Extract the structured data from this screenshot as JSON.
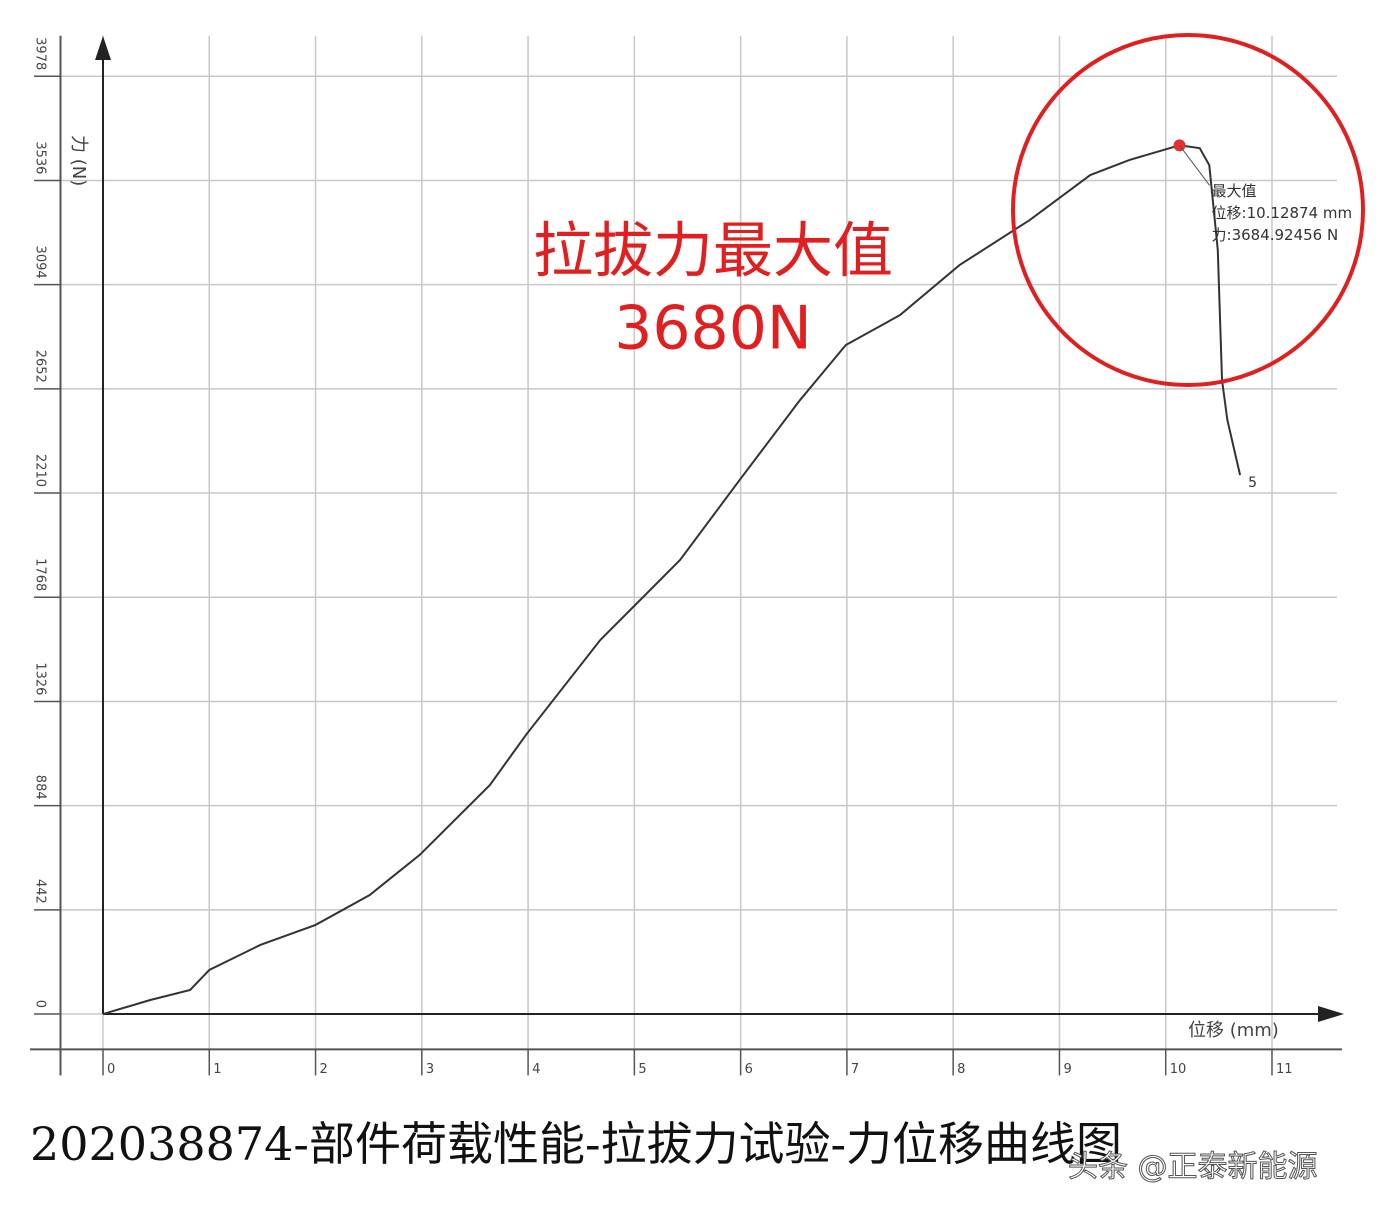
{
  "chart_data": {
    "type": "line",
    "y_label": "力 (N)",
    "x_label": "位移 (mm)",
    "annotation_title": "拉拔力最大值",
    "annotation_value": "3680N",
    "peak_label": [
      "最大值",
      "位移:10.12874 mm",
      "力:3684.92456 N"
    ],
    "end_label": "5",
    "caption": "202038874-部件荷载性能-拉拔力试验-力位移曲线图",
    "watermark": "头条 @正泰新能源",
    "xlim": [
      -0.4,
      11.8
    ],
    "ylim": [
      -150,
      4150
    ],
    "xticks": [
      0,
      1,
      2,
      3,
      4,
      5,
      6,
      7,
      8,
      9,
      10,
      11
    ],
    "yticks": [
      0,
      442,
      884,
      1326,
      1768,
      2210,
      2652,
      3094,
      3536,
      3978
    ],
    "grid": true,
    "series": [
      {
        "name": "力",
        "color": "#333333",
        "x": [
          0,
          0.44,
          0.82,
          1.0,
          1.48,
          2.0,
          2.51,
          2.98,
          3.64,
          3.98,
          4.68,
          5.43,
          5.99,
          6.56,
          6.99,
          7.5,
          8.06,
          8.72,
          9.29,
          9.66,
          10.13,
          10.32,
          10.41,
          10.49,
          10.53,
          10.58,
          10.7
        ],
        "values": [
          0,
          59,
          102,
          187,
          293,
          378,
          505,
          675,
          971,
          1184,
          1587,
          1926,
          2265,
          2605,
          2838,
          2965,
          3177,
          3368,
          3559,
          3623,
          3685,
          3673,
          3601,
          3241,
          2689,
          2520,
          2286
        ]
      }
    ],
    "peak_color": "#e53030"
  }
}
